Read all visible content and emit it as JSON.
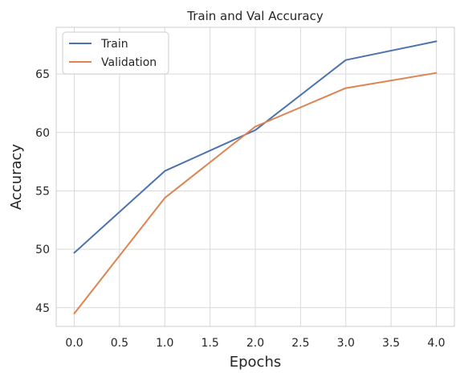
{
  "chart_data": {
    "type": "line",
    "title": "Train and Val Accuracy",
    "xlabel": "Epochs",
    "ylabel": "Accuracy",
    "x": [
      0.0,
      1.0,
      2.0,
      3.0,
      4.0
    ],
    "xlim": [
      -0.2,
      4.2
    ],
    "ylim": [
      43.4,
      69.0
    ],
    "xticks": [
      0.0,
      0.5,
      1.0,
      1.5,
      2.0,
      2.5,
      3.0,
      3.5,
      4.0
    ],
    "xtick_labels": [
      "0.0",
      "0.5",
      "1.0",
      "1.5",
      "2.0",
      "2.5",
      "3.0",
      "3.5",
      "4.0"
    ],
    "yticks": [
      45,
      50,
      55,
      60,
      65
    ],
    "ytick_labels": [
      "45",
      "50",
      "55",
      "60",
      "65"
    ],
    "grid": true,
    "legend_position": "top-left",
    "series": [
      {
        "name": "Train",
        "color": "#4c72b0",
        "values": [
          49.7,
          56.7,
          60.2,
          66.2,
          67.8
        ]
      },
      {
        "name": "Validation",
        "color": "#dd8452",
        "values": [
          44.5,
          54.4,
          60.5,
          63.8,
          65.1
        ]
      }
    ]
  }
}
